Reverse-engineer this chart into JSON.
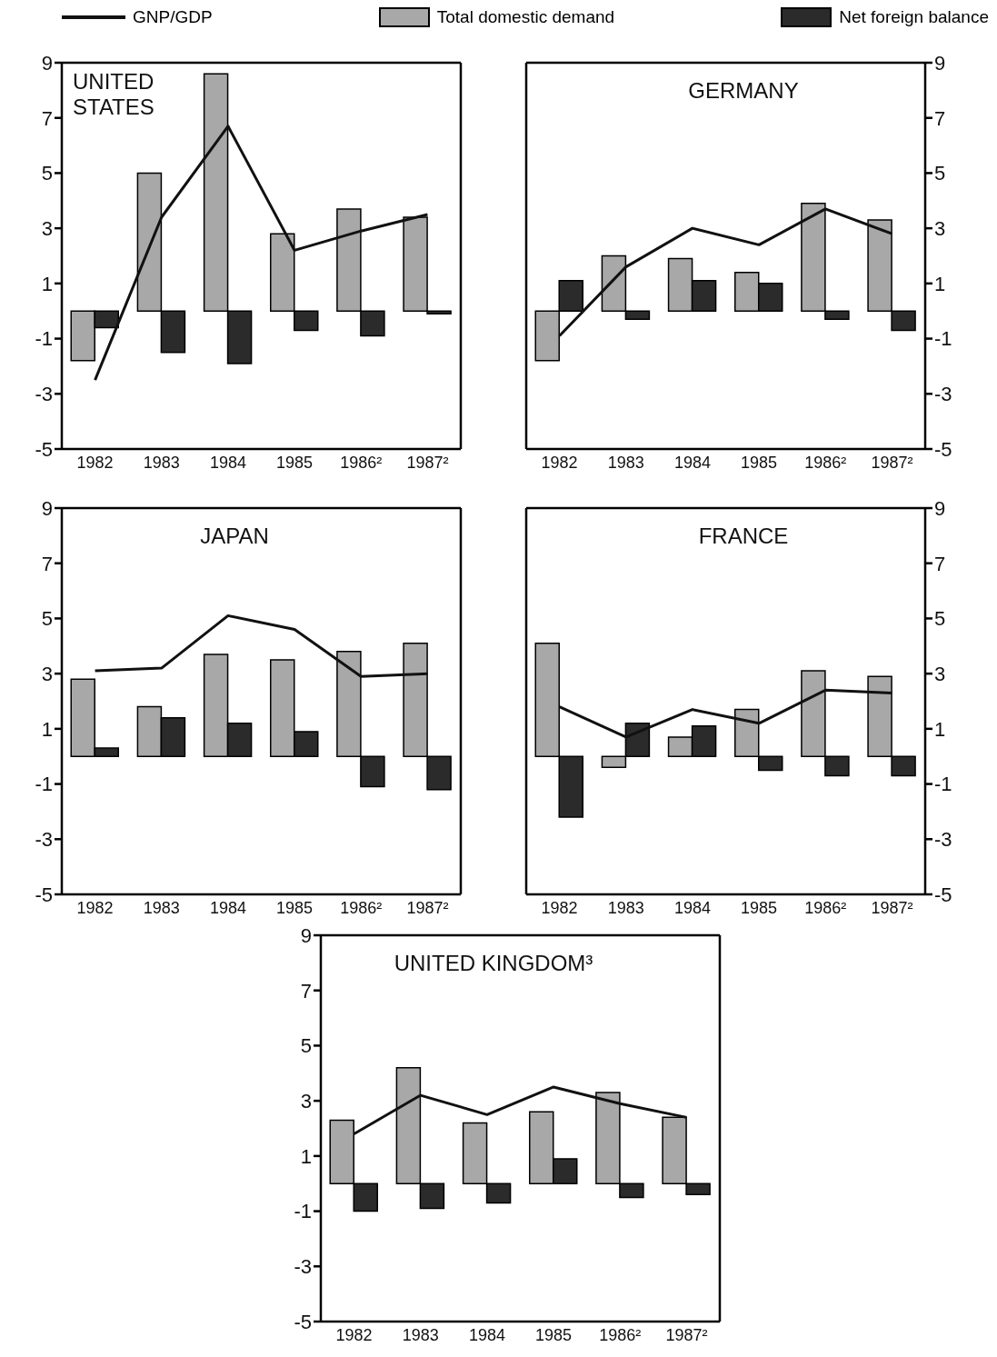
{
  "chart_data": [
    {
      "type": "bar",
      "title": "UNITED STATES",
      "categories": [
        "1982",
        "1983",
        "1984",
        "1985",
        "1986²",
        "1987²"
      ],
      "ylim": [
        -5,
        9
      ],
      "yticks": [
        -5,
        -3,
        -1,
        1,
        3,
        5,
        7,
        9
      ],
      "legend": "top",
      "series": [
        {
          "name": "GNP/GDP",
          "type": "line",
          "color": "#111111",
          "values": [
            -2.5,
            3.4,
            6.7,
            2.2,
            2.9,
            3.5
          ]
        },
        {
          "name": "Total domestic demand",
          "color": "#a8a8a8",
          "values": [
            -1.8,
            5.0,
            8.6,
            2.8,
            3.7,
            3.4
          ]
        },
        {
          "name": "Net foreign balance",
          "color": "#2b2b2b",
          "values": [
            -0.6,
            -1.5,
            -1.9,
            -0.7,
            -0.9,
            -0.1
          ]
        }
      ]
    },
    {
      "type": "bar",
      "title": "GERMANY",
      "categories": [
        "1982",
        "1983",
        "1984",
        "1985",
        "1986²",
        "1987²"
      ],
      "y2lim": [
        -5,
        9
      ],
      "y2ticks": [
        -5,
        -3,
        -1,
        1,
        3,
        5,
        7,
        9
      ],
      "series": [
        {
          "type": "line",
          "axis": "y2",
          "color": "#111111",
          "values": [
            -0.9,
            1.6,
            3.0,
            2.4,
            3.7,
            2.8
          ]
        },
        {
          "axis": "y2",
          "color": "#a8a8a8",
          "values": [
            -1.8,
            2.0,
            1.9,
            1.4,
            3.9,
            3.3
          ]
        },
        {
          "axis": "y2",
          "color": "#2b2b2b",
          "values": [
            1.1,
            -0.3,
            1.1,
            1.0,
            -0.3,
            -0.7
          ]
        }
      ]
    },
    {
      "type": "bar",
      "title": "JAPAN",
      "categories": [
        "1982",
        "1983",
        "1984",
        "1985",
        "1986²",
        "1987²"
      ],
      "ylim": [
        -5,
        9
      ],
      "yticks": [
        -5,
        -3,
        -1,
        1,
        3,
        5,
        7,
        9
      ],
      "series": [
        {
          "type": "line",
          "color": "#111111",
          "values": [
            3.1,
            3.2,
            5.1,
            4.6,
            2.9,
            3.0
          ]
        },
        {
          "color": "#a8a8a8",
          "values": [
            2.8,
            1.8,
            3.7,
            3.5,
            3.8,
            4.1
          ]
        },
        {
          "color": "#2b2b2b",
          "values": [
            0.3,
            1.4,
            1.2,
            0.9,
            -1.1,
            -1.2
          ]
        }
      ]
    },
    {
      "type": "bar",
      "title": "FRANCE",
      "categories": [
        "1982",
        "1983",
        "1984",
        "1985",
        "1986²",
        "1987²"
      ],
      "y2lim": [
        -5,
        9
      ],
      "y2ticks": [
        -5,
        -3,
        -1,
        1,
        3,
        5,
        7,
        9
      ],
      "series": [
        {
          "type": "line",
          "axis": "y2",
          "color": "#111111",
          "values": [
            1.8,
            0.7,
            1.7,
            1.2,
            2.4,
            2.3
          ]
        },
        {
          "axis": "y2",
          "color": "#a8a8a8",
          "values": [
            4.1,
            -0.4,
            0.7,
            1.7,
            3.1,
            2.9
          ]
        },
        {
          "axis": "y2",
          "color": "#2b2b2b",
          "values": [
            -2.2,
            1.2,
            1.1,
            -0.5,
            -0.7,
            -0.7
          ]
        }
      ]
    },
    {
      "type": "bar",
      "title": "UNITED KINGDOM³",
      "categories": [
        "1982",
        "1983",
        "1984",
        "1985",
        "1986²",
        "1987²"
      ],
      "ylim": [
        -5,
        9
      ],
      "yticks": [
        -5,
        -3,
        -1,
        1,
        3,
        5,
        7,
        9
      ],
      "series": [
        {
          "type": "line",
          "color": "#111111",
          "values": [
            1.8,
            3.2,
            2.5,
            3.5,
            2.9,
            2.4
          ]
        },
        {
          "color": "#a8a8a8",
          "values": [
            2.3,
            4.2,
            2.2,
            2.6,
            3.3,
            2.4
          ]
        },
        {
          "color": "#2b2b2b",
          "values": [
            -1.0,
            -0.9,
            -0.7,
            0.9,
            -0.5,
            -0.4
          ]
        }
      ]
    }
  ]
}
